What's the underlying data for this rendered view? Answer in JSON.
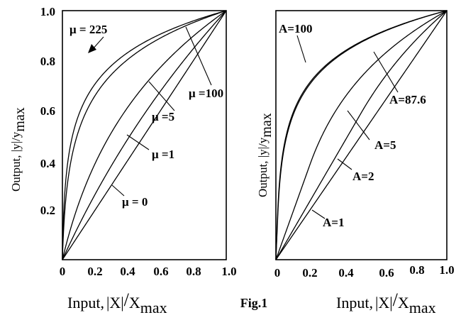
{
  "figure_caption": "Fig.1",
  "chart_data": [
    {
      "type": "line",
      "law": "mu-law",
      "xlabel": {
        "pre": "Input,",
        "abs": "X",
        "slash": "/",
        "denom": "X",
        "sub": "max"
      },
      "ylabel": "Output, |y|/y",
      "ylabel_sub": "max",
      "xlim": [
        0,
        1.0
      ],
      "ylim": [
        0,
        1.0
      ],
      "x_ticks": [
        "0",
        "0.2",
        "0.4",
        "0.6",
        "0.8",
        "1.0"
      ],
      "y_ticks": [
        "0.2",
        "0.4",
        "0.6",
        "0.8",
        "1.0"
      ],
      "series": [
        {
          "name": "μ = 225",
          "param": 225
        },
        {
          "name": "μ =100",
          "param": 100
        },
        {
          "name": "μ =5",
          "param": 5
        },
        {
          "name": "μ =1",
          "param": 1
        },
        {
          "name": "μ = 0",
          "param": 0
        }
      ]
    },
    {
      "type": "line",
      "law": "A-law",
      "xlabel": {
        "pre": "Input,",
        "abs": "X",
        "slash": "/",
        "denom": "X",
        "sub": "max"
      },
      "ylabel": "Output, |y|/y",
      "ylabel_sub": "max",
      "xlim": [
        0,
        1.0
      ],
      "ylim": [
        0,
        1.0
      ],
      "x_ticks": [
        "0",
        "0.2",
        "0.4",
        "0.6",
        "0.8",
        "1.0"
      ],
      "y_ticks": [],
      "series": [
        {
          "name": "A=100",
          "param": 100
        },
        {
          "name": "A=87.6",
          "param": 87.6
        },
        {
          "name": "A=5",
          "param": 5
        },
        {
          "name": "A=2",
          "param": 2
        },
        {
          "name": "A=1",
          "param": 1
        }
      ]
    }
  ]
}
